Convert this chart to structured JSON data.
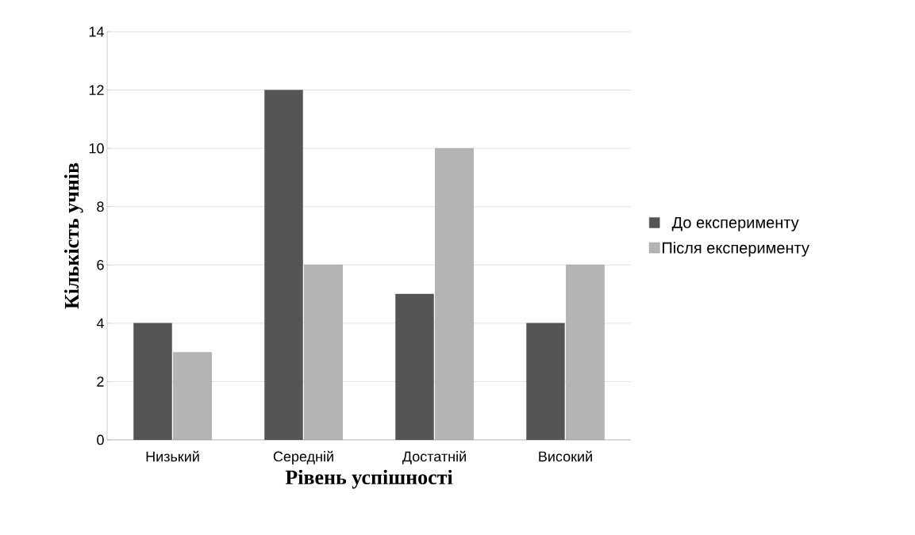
{
  "chart_data": {
    "type": "bar",
    "xlabel": "Рівень успішності",
    "ylabel": "Кількість учнів",
    "categories": [
      "Низький",
      "Середній",
      "Достатній",
      "Високий"
    ],
    "series": [
      {
        "name": "До експерименту",
        "color": "#555555",
        "values": [
          4,
          12,
          5,
          4
        ]
      },
      {
        "name": "Після експерименту",
        "color": "#b4b4b4",
        "values": [
          3,
          6,
          10,
          6
        ]
      }
    ],
    "ylim": [
      0,
      14
    ],
    "yticks": [
      0,
      2,
      4,
      6,
      8,
      10,
      12,
      14
    ],
    "grid": "y",
    "legend": "right"
  }
}
